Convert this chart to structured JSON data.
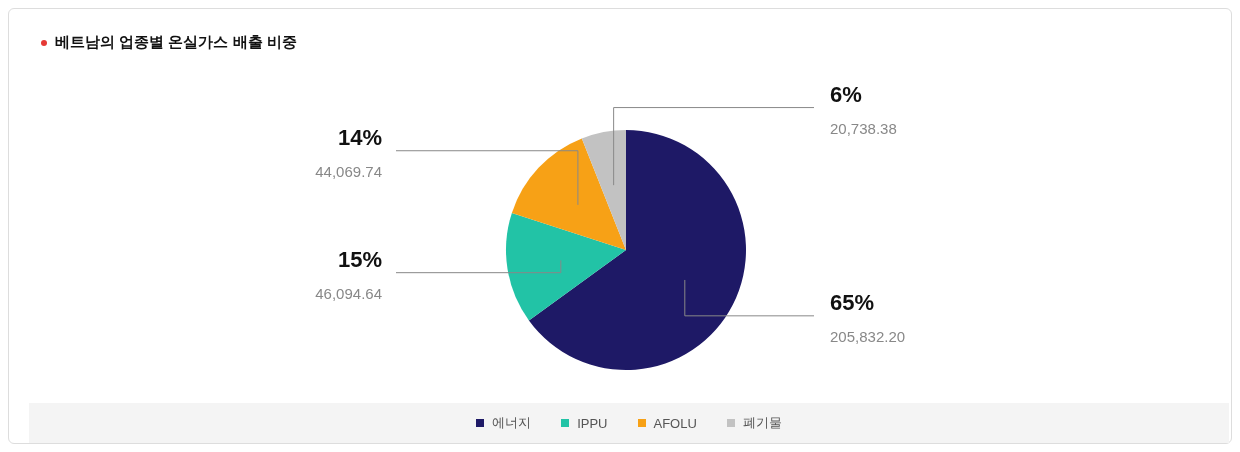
{
  "chart_data": {
    "type": "pie",
    "title": "베트남의 업종별 온실가스 배출 비중",
    "categories": [
      "에너지",
      "IPPU",
      "AFOLU",
      "폐기물"
    ],
    "values": [
      65,
      15,
      14,
      6
    ],
    "colors": [
      "#1e1966",
      "#22c3a6",
      "#f7a116",
      "#c2c2c2"
    ],
    "value_labels": [
      "65%\n205,832.20",
      "15%\n46,094.64",
      "14%\n44,069.74",
      "6%\n20,738.38"
    ],
    "legend": "bottom"
  }
}
